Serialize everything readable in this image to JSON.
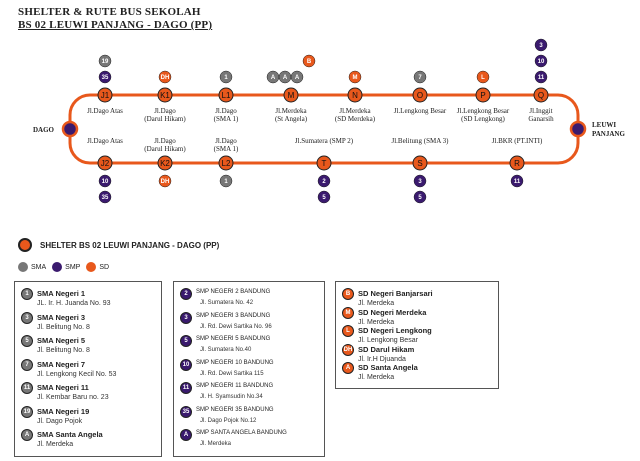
{
  "header": {
    "title_line1": "SHELTER & RUTE BUS SEKOLAH",
    "title_line2": "BS 02 LEUWI PANJANG - DAGO (PP)"
  },
  "route": {
    "left_terminal": "DAGO",
    "right_terminal_line1": "LEUWI",
    "right_terminal_line2": "PANJANG",
    "top_stops": [
      {
        "code": "J1",
        "l1": "Jl.Dago Atas",
        "l2": "",
        "schools": [
          "35",
          "19"
        ]
      },
      {
        "code": "K1",
        "l1": "Jl.Dago",
        "l2": "(Darul Hikam)",
        "schools": [
          "DH"
        ]
      },
      {
        "code": "L1",
        "l1": "Jl.Dago",
        "l2": "(SMA 1)",
        "schools": [
          "1"
        ]
      },
      {
        "code": "M",
        "l1": "Jl.Merdeka",
        "l2": "(St Angela)",
        "schools": [
          "A",
          "A",
          "A",
          "B"
        ]
      },
      {
        "code": "N",
        "l1": "Jl.Merdeka",
        "l2": "(SD Merdeka)",
        "schools": [
          "M"
        ]
      },
      {
        "code": "O",
        "l1": "Jl.Lengkong Besar",
        "l2": "",
        "schools": [
          "7"
        ]
      },
      {
        "code": "P",
        "l1": "Jl.Lengkong Besar",
        "l2": "(SD Lengkong)",
        "schools": [
          "L"
        ]
      },
      {
        "code": "Q",
        "l1": "Jl.Inggit",
        "l2": "Ganarsih",
        "schools": [
          "11",
          "10",
          "3"
        ]
      }
    ],
    "bottom_stops": [
      {
        "code": "J2",
        "l1": "Jl.Dago Atas",
        "l2": "",
        "schools": [
          "10",
          "35"
        ]
      },
      {
        "code": "K2",
        "l1": "Jl.Dago",
        "l2": "(Darul Hikam)",
        "schools": [
          "DH"
        ]
      },
      {
        "code": "L2",
        "l1": "Jl.Dago",
        "l2": "(SMA 1)",
        "schools": [
          "1"
        ]
      },
      {
        "code": "T",
        "l1": "Jl.Sumatera (SMP 2)",
        "l2": "",
        "schools": [
          "2",
          "5"
        ]
      },
      {
        "code": "S",
        "l1": "Jl.Belitung (SMA 3)",
        "l2": "",
        "schools": [
          "3",
          "5"
        ]
      },
      {
        "code": "R",
        "l1": "Jl.BKR (PT.INTI)",
        "l2": "",
        "schools": [
          "11"
        ]
      }
    ]
  },
  "legend": {
    "shelter_label": "SHELTER BS 02 LEUWI PANJANG - DAGO (PP)",
    "key": [
      {
        "label": "SMA",
        "color": "#777777"
      },
      {
        "label": "SMP",
        "color": "#3a1a6e"
      },
      {
        "label": "SD",
        "color": "#e8581c"
      }
    ]
  },
  "sma_list": [
    {
      "badge": "1",
      "name": "SMA Negeri 1",
      "addr": "JL. Ir. H. Juanda No. 93"
    },
    {
      "badge": "3",
      "name": "SMA Negeri 3",
      "addr": "Jl. Belitung No. 8"
    },
    {
      "badge": "5",
      "name": "SMA Negeri 5",
      "addr": "Jl. Belitung No. 8"
    },
    {
      "badge": "7",
      "name": "SMA Negeri 7",
      "addr": "Jl. Lengkong Kecil No. 53"
    },
    {
      "badge": "11",
      "name": "SMA Negeri 11",
      "addr": "Jl. Kembar Baru no. 23"
    },
    {
      "badge": "19",
      "name": "SMA Negeri 19",
      "addr": "Jl. Dago Pojok"
    },
    {
      "badge": "A",
      "name": "SMA Santa Angela",
      "addr": "Jl. Merdeka"
    }
  ],
  "smp_list": [
    {
      "badge": "2",
      "name": "SMP NEGERI 2 BANDUNG",
      "addr": "Jl. Sumatera No. 42"
    },
    {
      "badge": "3",
      "name": "SMP NEGERI 3 BANDUNG",
      "addr": "Jl. Rd. Dewi Sartika No. 96"
    },
    {
      "badge": "5",
      "name": "SMP NEGERI 5 BANDUNG",
      "addr": "Jl. Sumatera No.40"
    },
    {
      "badge": "10",
      "name": "SMP NEGERI 10 BANDUNG",
      "addr": "Jl. Rd. Dewi Sartika 115"
    },
    {
      "badge": "11",
      "name": "SMP NEGERI 11 BANDUNG",
      "addr": "Jl. H. Syamsudin No.34"
    },
    {
      "badge": "35",
      "name": "SMP NEGERI 35 BANDUNG",
      "addr": "Jl. Dago Pojok No.12"
    },
    {
      "badge": "A",
      "name": "SMP SANTA ANGELA BANDUNG",
      "addr": "Jl. Merdeka"
    }
  ],
  "sd_list": [
    {
      "badge": "B",
      "name": "SD Negeri Banjarsari",
      "addr": "Jl. Merdeka"
    },
    {
      "badge": "M",
      "name": "SD Negeri Merdeka",
      "addr": "Jl. Merdeka"
    },
    {
      "badge": "L",
      "name": "SD Negeri Lengkong",
      "addr": "Jl. Lengkong Besar"
    },
    {
      "badge": "DH",
      "name": "SD Darul Hikam",
      "addr": "Jl. Ir.H Djuanda"
    },
    {
      "badge": "A",
      "name": "SD Santa Angela",
      "addr": "Jl. Merdeka"
    }
  ],
  "colors": {
    "route": "#e8581c",
    "sma": "#777777",
    "smp": "#3a1a6e",
    "sd": "#e8581c",
    "stop_fill": "#e8581c"
  }
}
